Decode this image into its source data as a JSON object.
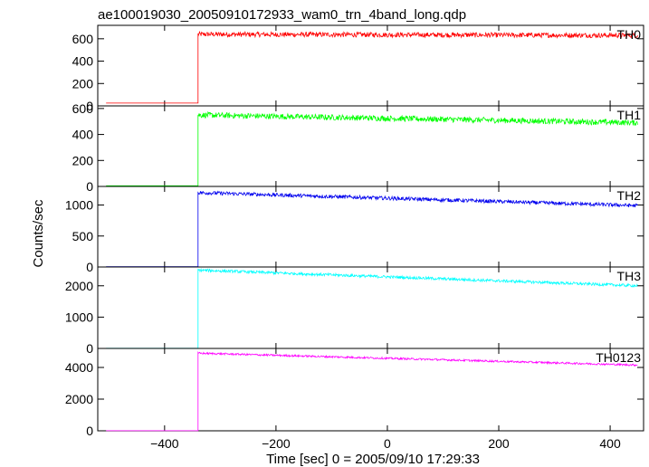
{
  "chart_data": {
    "type": "line",
    "title": "ae100019030_20050910172933_wam0_trn_4band_long.qdp",
    "xlabel": "Time [sec] 0 = 2005/09/10 17:29:33",
    "ylabel": "Counts/sec",
    "xlim": [
      -520,
      460
    ],
    "x_ticks": [
      -400,
      -200,
      0,
      200,
      400
    ],
    "x_tick_labels": [
      "−400",
      "−200",
      "0",
      "200",
      "400"
    ],
    "grid": false,
    "legend": "none",
    "trigger_time": -340,
    "data_start": -505,
    "data_end": 450,
    "panels": [
      {
        "name": "TH0",
        "color": "#ff0000",
        "ylim": [
          0,
          720
        ],
        "y_ticks": [
          0,
          200,
          400,
          600
        ],
        "pre_level": 25,
        "post_start": 640,
        "post_end": 630,
        "noise": 22
      },
      {
        "name": "TH1",
        "color": "#00ff00",
        "ylim": [
          0,
          620
        ],
        "y_ticks": [
          0,
          200,
          400,
          600
        ],
        "pre_level": 5,
        "post_start": 550,
        "post_end": 490,
        "noise": 22
      },
      {
        "name": "TH2",
        "color": "#0000ee",
        "ylim": [
          0,
          1300
        ],
        "y_ticks": [
          0,
          500,
          1000
        ],
        "pre_level": 5,
        "post_start": 1200,
        "post_end": 990,
        "noise": 30
      },
      {
        "name": "TH3",
        "color": "#00ffff",
        "ylim": [
          0,
          2600
        ],
        "y_ticks": [
          0,
          1000,
          2000
        ],
        "pre_level": 5,
        "post_start": 2500,
        "post_end": 2000,
        "noise": 45
      },
      {
        "name": "TH0123",
        "color": "#ff00ff",
        "ylim": [
          0,
          5200
        ],
        "y_ticks": [
          0,
          2000,
          4000
        ],
        "pre_level": 5,
        "post_start": 4900,
        "post_end": 4150,
        "noise": 60
      }
    ]
  }
}
